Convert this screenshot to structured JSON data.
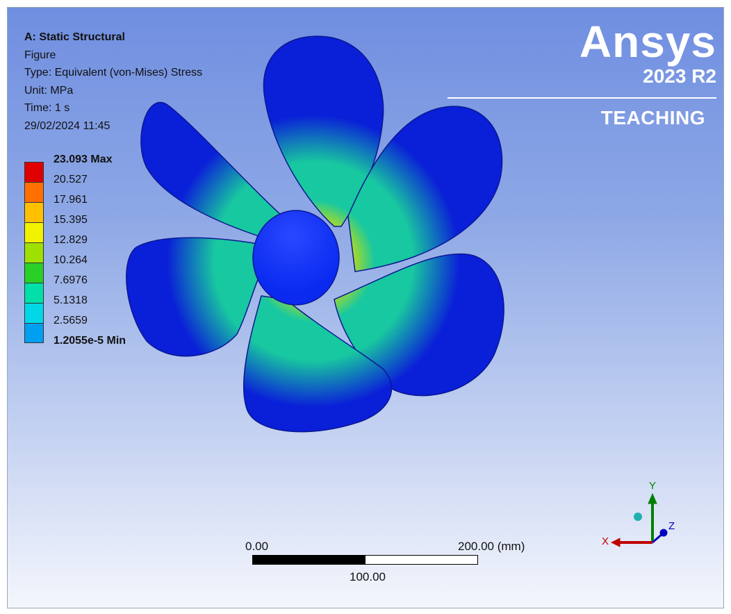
{
  "header": {
    "analysis": "A: Static Structural",
    "figure": "Figure",
    "type": "Type: Equivalent (von-Mises) Stress",
    "unit": "Unit: MPa",
    "time": "Time: 1 s",
    "date": "29/02/2024 11:45"
  },
  "legend": {
    "labels": [
      "23.093 Max",
      "20.527",
      "17.961",
      "15.395",
      "12.829",
      "10.264",
      "7.6976",
      "5.1318",
      "2.5659",
      "1.2055e-5 Min"
    ],
    "colors": [
      "#e00000",
      "#ff7000",
      "#ffc000",
      "#f2f200",
      "#9ee000",
      "#28d028",
      "#00e0a8",
      "#00d8e8",
      "#00a0f0",
      "#0018e0"
    ]
  },
  "logo": {
    "name": "Ansys",
    "version": "2023 R2",
    "edition": "TEACHING"
  },
  "scale_bar": {
    "left": "0.00",
    "right": "200.00 (mm)",
    "middle": "100.00"
  },
  "triad": {
    "x": "X",
    "y": "Y",
    "z": "Z",
    "colors": {
      "x": "#c00000",
      "y": "#008000",
      "z": "#0000c0",
      "iso": "#20b0b0"
    }
  },
  "model": {
    "description_icon": "propeller-model",
    "colors": {
      "blade": "#0a1fd8",
      "hub": "#0a2af0",
      "mid": "#18c8a0",
      "high": "#d8e000",
      "peak": "#e06000"
    }
  }
}
